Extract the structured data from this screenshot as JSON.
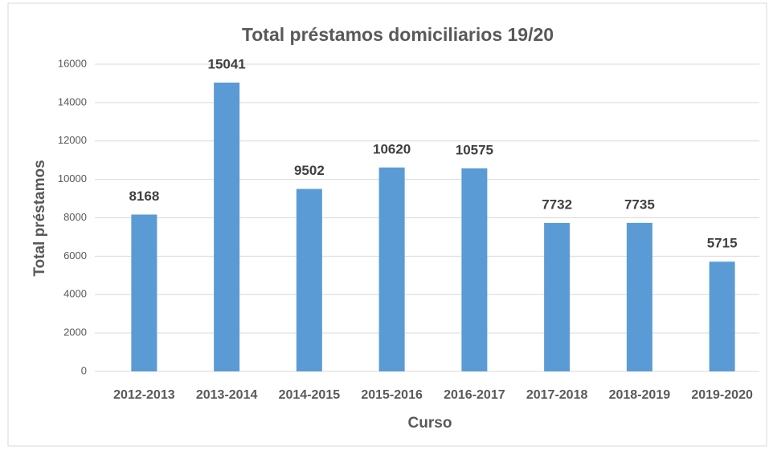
{
  "chart_data": {
    "type": "bar",
    "title": "Total préstamos domiciliarios 19/20",
    "x_label": "Curso",
    "y_label": "Total préstamos",
    "categories": [
      "2012-2013",
      "2013-2014",
      "2014-2015",
      "2015-2016",
      "2016-2017",
      "2017-2018",
      "2018-2019",
      "2019-2020"
    ],
    "values": [
      8168,
      15041,
      9502,
      10620,
      10575,
      7732,
      7735,
      5715
    ],
    "color": "#5b9bd5",
    "ylim": [
      0,
      16000
    ],
    "yticks": [
      0,
      2000,
      4000,
      6000,
      8000,
      10000,
      12000,
      14000,
      16000
    ],
    "grid": true
  }
}
